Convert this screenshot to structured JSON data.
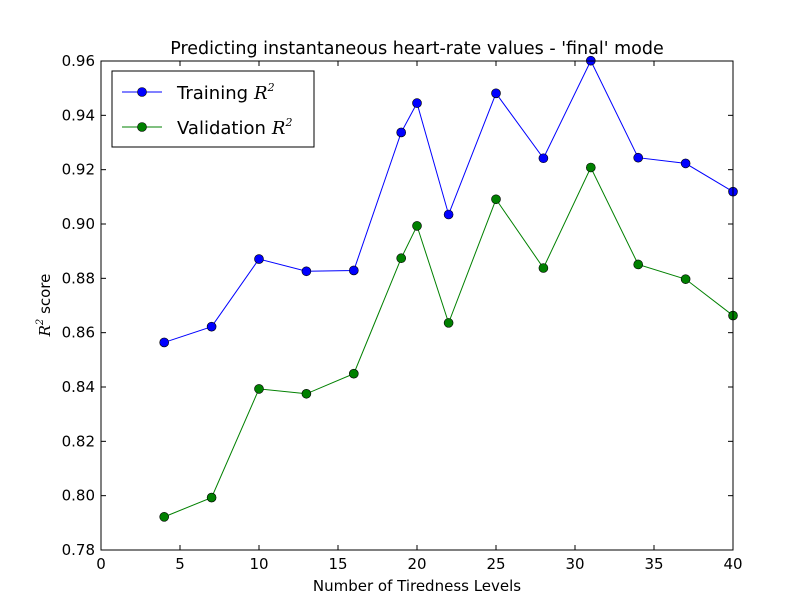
{
  "chart_data": {
    "type": "line",
    "title": "Predicting instantaneous heart-rate values - 'final' mode",
    "xlabel": "Number of Tiredness Levels",
    "ylabel": {
      "symbol": "R",
      "exponent": "2",
      "text": " score"
    },
    "xlim": [
      0,
      40
    ],
    "ylim": [
      0.78,
      0.96
    ],
    "xticks": [
      0,
      5,
      10,
      15,
      20,
      25,
      30,
      35,
      40
    ],
    "yticks": [
      0.78,
      0.8,
      0.82,
      0.84,
      0.86,
      0.88,
      0.9,
      0.92,
      0.94,
      0.96
    ],
    "xtick_labels": [
      "0",
      "5",
      "10",
      "15",
      "20",
      "25",
      "30",
      "35",
      "40"
    ],
    "ytick_labels": [
      "0.78",
      "0.80",
      "0.82",
      "0.84",
      "0.86",
      "0.88",
      "0.90",
      "0.92",
      "0.94",
      "0.96"
    ],
    "grid": false,
    "legend_position": "top-left",
    "x": [
      4,
      7,
      10,
      13,
      16,
      19,
      20,
      22,
      25,
      28,
      31,
      34,
      37,
      40
    ],
    "series": [
      {
        "name": "Training",
        "name_math": "R",
        "name_exp": "2",
        "color": "#0000ff",
        "values": [
          0.8564,
          0.8622,
          0.8871,
          0.8826,
          0.8829,
          0.9337,
          0.9445,
          0.9035,
          0.9481,
          0.9242,
          0.9601,
          0.9244,
          0.9223,
          0.9119
        ]
      },
      {
        "name": "Validation",
        "name_math": "R",
        "name_exp": "2",
        "color": "#008000",
        "values": [
          0.7922,
          0.7993,
          0.8393,
          0.8375,
          0.8449,
          0.8874,
          0.8993,
          0.8636,
          0.9091,
          0.8838,
          0.9208,
          0.8851,
          0.8797,
          0.8663
        ]
      }
    ]
  }
}
